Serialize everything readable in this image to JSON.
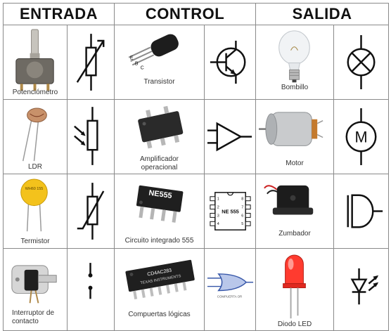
{
  "headers": {
    "entrada": "ENTRADA",
    "control": "CONTROL",
    "salida": "SALIDA"
  },
  "rows": [
    {
      "entrada": {
        "name": "Potenciómetro"
      },
      "control": {
        "name": "Transistor",
        "pins": [
          "E",
          "B",
          "C"
        ]
      },
      "salida": {
        "name": "Bombillo"
      }
    },
    {
      "entrada": {
        "name": "LDR"
      },
      "control": {
        "name": "Amplificador operacional"
      },
      "salida": {
        "name": "Motor",
        "symbol_letter": "M"
      }
    },
    {
      "entrada": {
        "name": "Termistor",
        "body_text": "WH60 155"
      },
      "control": {
        "name": "Circuito integrado 555",
        "chip_text": "NE555",
        "symbol_text": "NE 555",
        "pins_left": [
          "1",
          "2",
          "3",
          "4"
        ],
        "pins_right": [
          "8",
          "7",
          "6",
          "5"
        ]
      },
      "salida": {
        "name": "Zumbador"
      }
    },
    {
      "entrada": {
        "name": "Interruptor de contacto"
      },
      "control": {
        "name": "Compuertas lógicas",
        "chip_text": "CD4AC283",
        "brand_text": "TEXAS INSTRUMENTS",
        "symbol_caption": "COMPUERTA OR"
      },
      "salida": {
        "name": "Diodo LED"
      }
    }
  ]
}
